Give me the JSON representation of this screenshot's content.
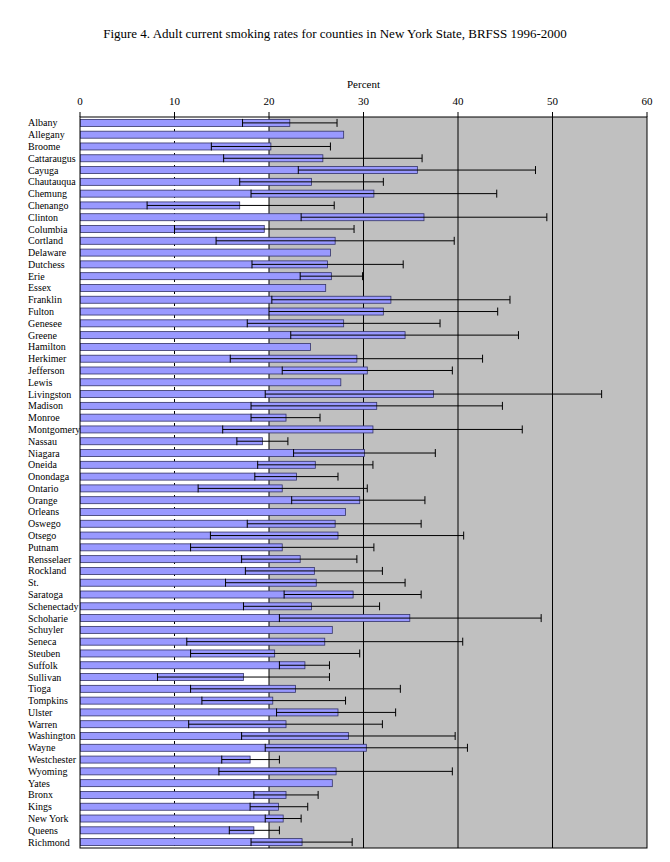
{
  "chart_data": {
    "type": "bar",
    "orientation": "horizontal",
    "title": "Figure 4.  Adult current smoking rates for counties in New York State, BRFSS 1996-2000",
    "x_label": "Percent",
    "categories": [
      "Albany",
      "Allegany",
      "Broome",
      "Cattaraugus",
      "Cayuga",
      "Chautauqua",
      "Chemung",
      "Chenango",
      "Clinton",
      "Columbia",
      "Cortland",
      "Delaware",
      "Dutchess",
      "Erie",
      "Essex",
      "Franklin",
      "Fulton",
      "Genesee",
      "Greene",
      "Hamilton",
      "Herkimer",
      "Jefferson",
      "Lewis",
      "Livingston",
      "Madison",
      "Monroe",
      "Montgomery",
      "Nassau",
      "Niagara",
      "Oneida",
      "Onondaga",
      "Ontario",
      "Orange",
      "Orleans",
      "Oswego",
      "Otsego",
      "Putnam",
      "Rensselaer",
      "Rockland",
      "St.",
      "Saratoga",
      "Schenectady",
      "Schoharie",
      "Schuyler",
      "Seneca",
      "Steuben",
      "Suffolk",
      "Sullivan",
      "Tioga",
      "Tompkins",
      "Ulster",
      "Warren",
      "Washington",
      "Wayne",
      "Westchester",
      "Wyoming",
      "Yates",
      "Bronx",
      "Kings",
      "New York",
      "Queens",
      "Richmond"
    ],
    "values": [
      22.2,
      27.9,
      20.2,
      25.7,
      35.7,
      24.5,
      31.1,
      16.9,
      36.4,
      19.5,
      27.0,
      26.5,
      26.2,
      26.6,
      26.0,
      32.9,
      32.1,
      27.9,
      34.4,
      24.4,
      29.3,
      30.4,
      27.6,
      37.4,
      31.4,
      21.8,
      31.0,
      19.3,
      30.1,
      24.9,
      22.9,
      21.4,
      29.6,
      28.1,
      27.0,
      27.3,
      21.4,
      23.3,
      24.8,
      25.0,
      28.9,
      24.5,
      34.9,
      26.7,
      25.9,
      20.6,
      23.8,
      17.3,
      22.8,
      20.4,
      27.3,
      21.8,
      28.4,
      30.3,
      18.0,
      27.1,
      26.7,
      21.8,
      21.0,
      21.5,
      18.4,
      23.5
    ],
    "error_low": [
      17.2,
      null,
      13.9,
      15.2,
      23.1,
      16.9,
      18.1,
      7.1,
      23.4,
      10.0,
      14.4,
      null,
      18.2,
      23.3,
      null,
      20.3,
      20.0,
      17.7,
      22.3,
      null,
      15.9,
      21.4,
      null,
      19.6,
      18.1,
      18.1,
      15.1,
      16.6,
      22.6,
      18.8,
      18.5,
      12.5,
      22.4,
      null,
      17.7,
      13.8,
      11.7,
      17.1,
      17.5,
      15.4,
      21.6,
      17.3,
      21.1,
      null,
      11.3,
      11.7,
      21.1,
      8.2,
      11.7,
      12.9,
      20.8,
      11.5,
      17.1,
      19.6,
      15.0,
      14.7,
      null,
      18.4,
      18.0,
      19.6,
      15.8,
      18.1
    ],
    "error_high": [
      27.2,
      null,
      26.5,
      36.2,
      48.2,
      32.1,
      44.1,
      26.9,
      49.4,
      29.0,
      39.6,
      null,
      34.2,
      29.9,
      null,
      45.5,
      44.2,
      38.1,
      46.4,
      null,
      42.6,
      39.4,
      null,
      55.2,
      44.7,
      25.4,
      46.8,
      22.0,
      37.6,
      31.0,
      27.3,
      30.4,
      36.5,
      null,
      36.1,
      40.6,
      31.1,
      29.3,
      32.0,
      34.4,
      36.1,
      31.7,
      48.8,
      null,
      40.5,
      29.6,
      26.4,
      26.4,
      33.9,
      28.1,
      33.4,
      32.0,
      39.7,
      41.0,
      21.1,
      39.4,
      null,
      25.2,
      24.1,
      23.4,
      21.1,
      28.8
    ],
    "color": "#9999ff",
    "xlim": [
      0,
      60
    ],
    "xticks": [
      0,
      10,
      20,
      30,
      40,
      50,
      60
    ],
    "grid": true
  }
}
